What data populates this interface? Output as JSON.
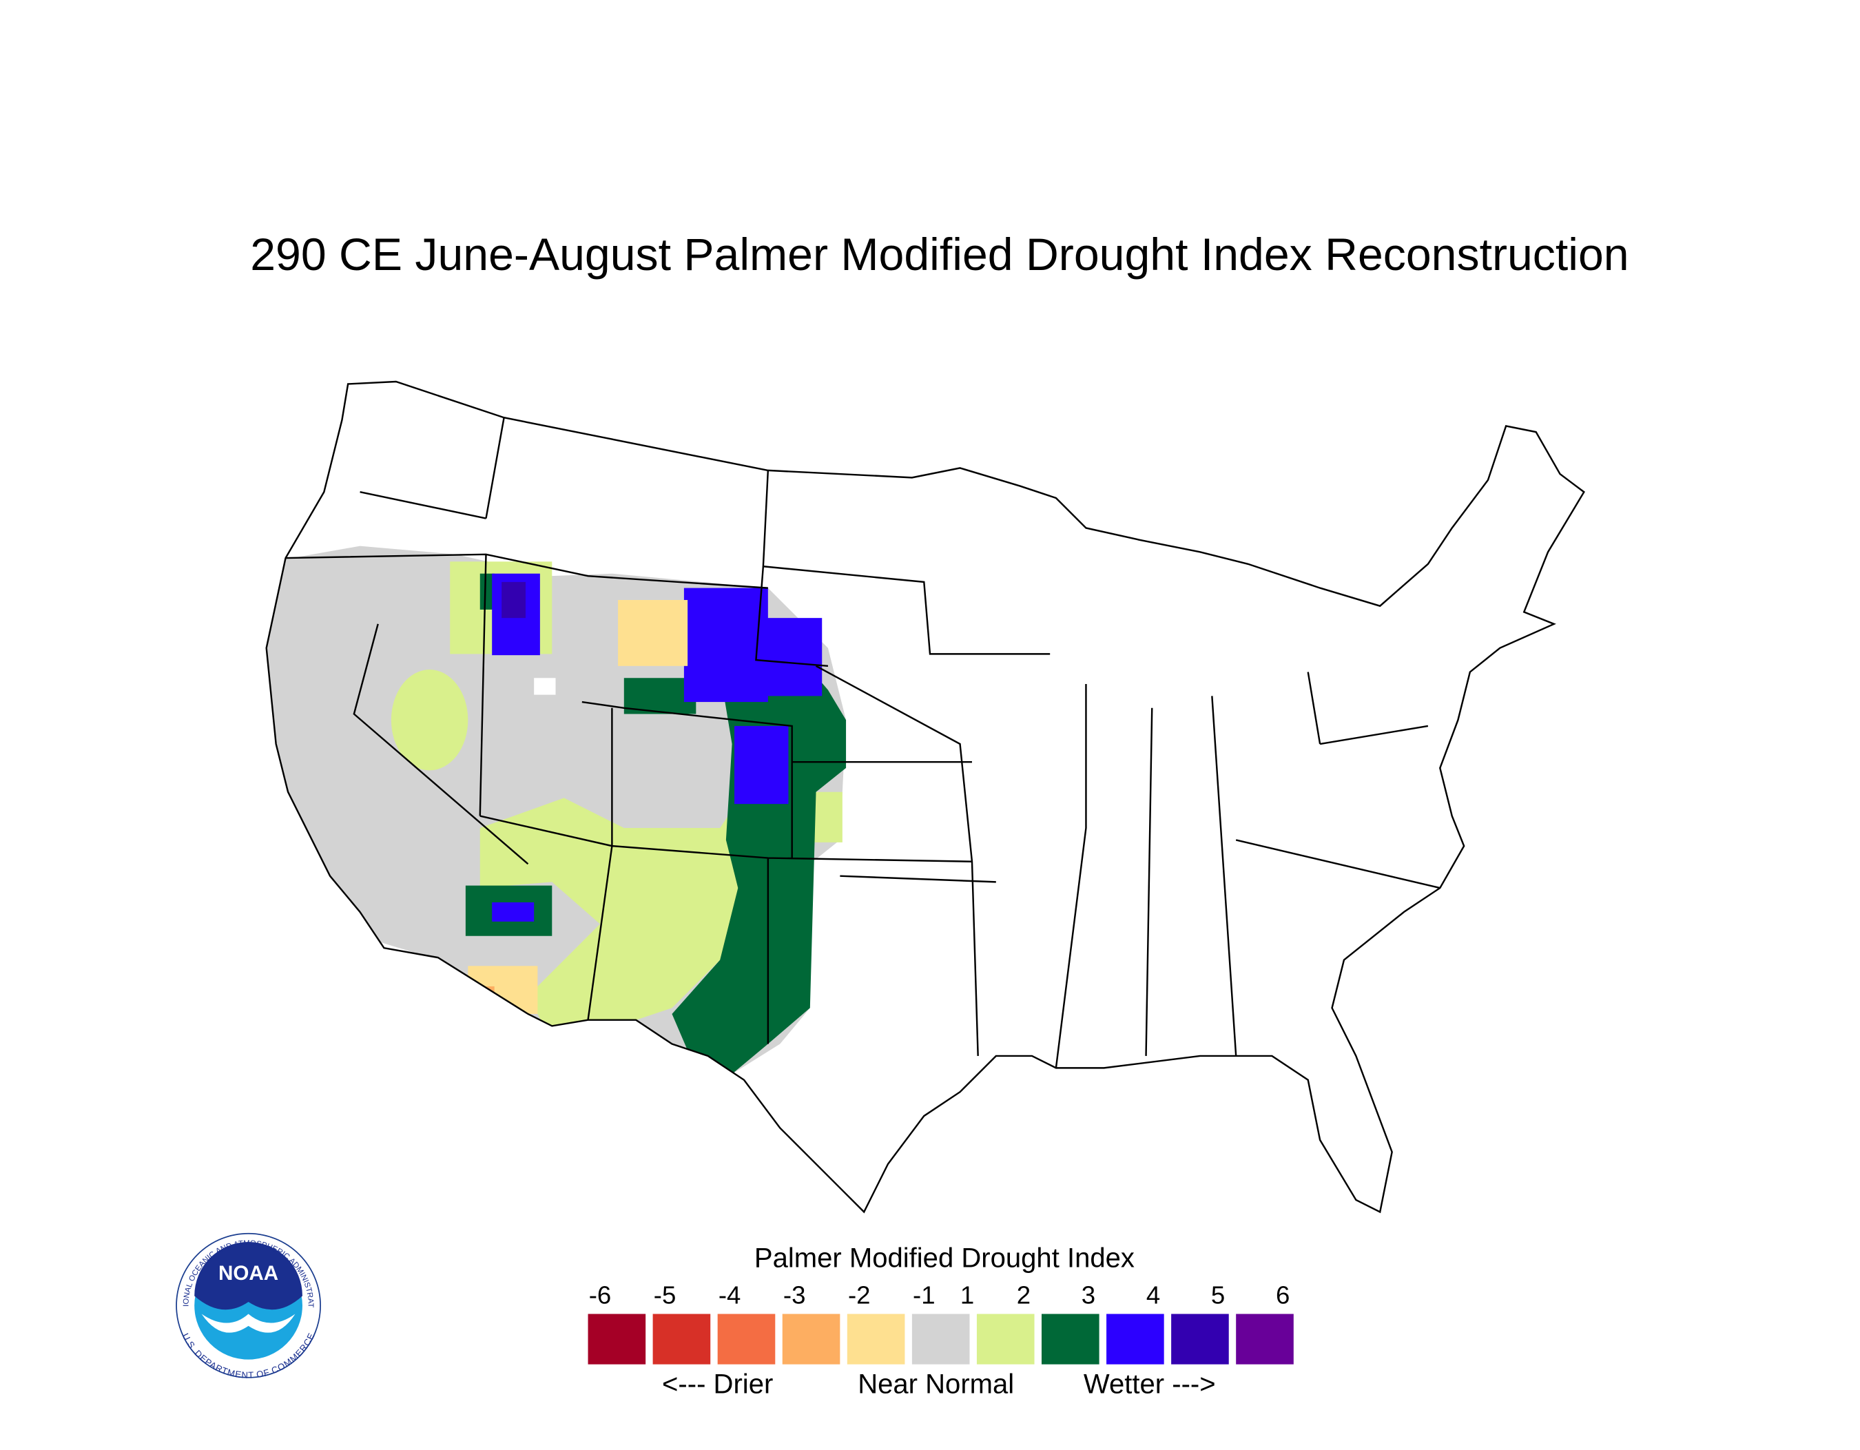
{
  "header": {
    "title": "290 CE  June-August  Palmer Modified Drought Index Reconstruction"
  },
  "legend": {
    "title": "Palmer Modified Drought Index",
    "ticks": [
      -6,
      -5,
      -4,
      -3,
      -2,
      -1,
      1,
      2,
      3,
      4,
      5,
      6
    ],
    "colors": [
      "#a50026",
      "#d73027",
      "#f46d43",
      "#fdae61",
      "#fee090",
      "#d3d3d3",
      "#d9f08c",
      "#006837",
      "#2c00ff",
      "#3300b0",
      "#680099"
    ],
    "captions": [
      "<--- Drier",
      "Near Normal",
      "Wetter --->"
    ]
  },
  "logo": {
    "name": "NOAA",
    "ring_top": "NATIONAL OCEANIC AND ATMOSPHERIC ADMINISTRATION",
    "ring_bottom": "U.S. DEPARTMENT OF COMMERCE"
  }
}
